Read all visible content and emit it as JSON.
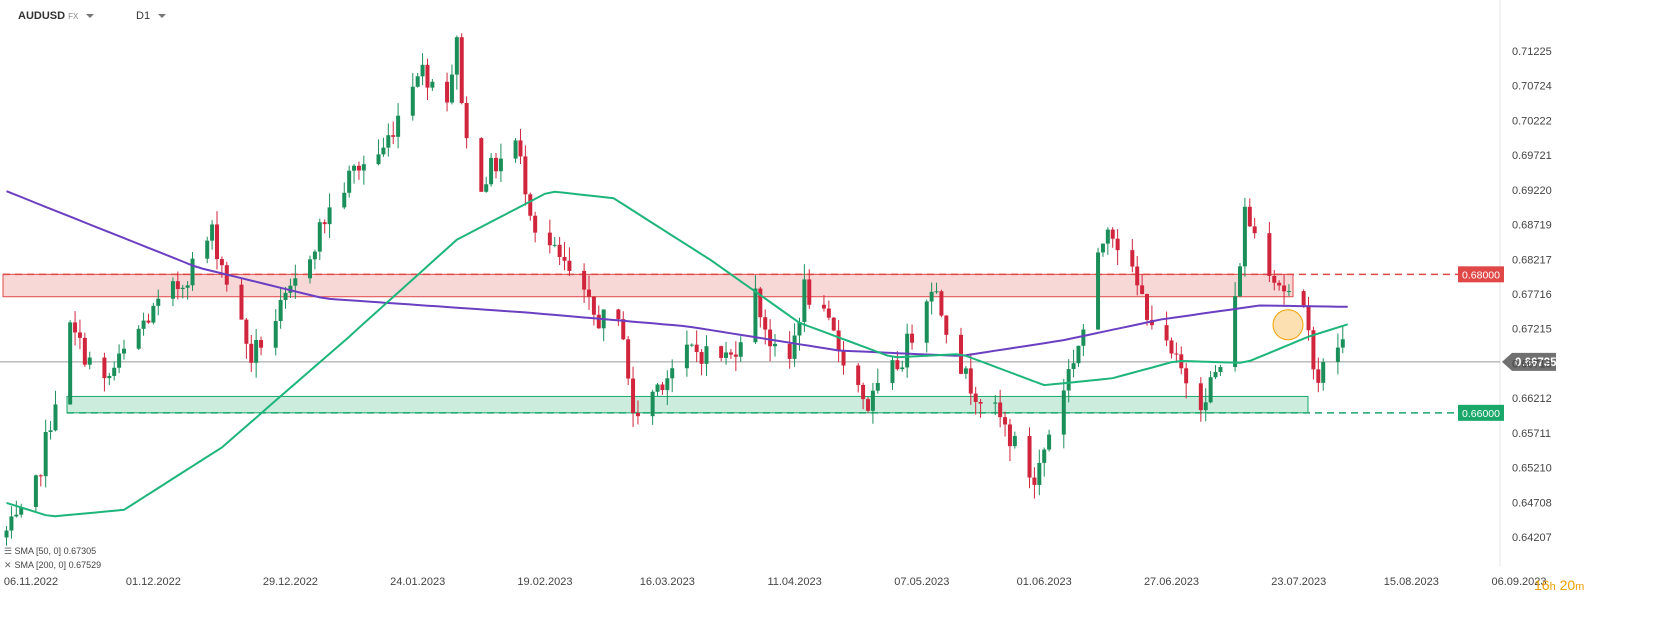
{
  "header": {
    "symbol": "AUDUSD",
    "symbol_suffix": "FX",
    "timeframe": "D1"
  },
  "timer": {
    "hours": "16",
    "h_unit": "h",
    "minutes": "20",
    "m_unit": "m"
  },
  "legend": [
    {
      "label": "SMA [50, 0]",
      "value": "0.67305",
      "color": "#1db57a"
    },
    {
      "label": "SMA [200, 0]",
      "value": "0.67529",
      "color": "#6b3fc2"
    }
  ],
  "colors": {
    "bull": "#1b8f5a",
    "bear": "#d0253c",
    "sma50": "#1db57a",
    "sma200": "#6b3fc2",
    "resistance": "#e04848",
    "support": "#19a86a",
    "price_tag": "#707070"
  },
  "chart_data": {
    "type": "candlestick",
    "instrument": "AUDUSD",
    "timeframe": "D1",
    "ylim": [
      0.634,
      0.715
    ],
    "y_ticks": [
      "0.71225",
      "0.70724",
      "0.70222",
      "0.69721",
      "0.69220",
      "0.68719",
      "0.68217",
      "0.67716",
      "0.67215",
      "0.66713",
      "0.66212",
      "0.65711",
      "0.65210",
      "0.64708",
      "0.64207"
    ],
    "x_ticks": [
      "06.11.2022",
      "01.12.2022",
      "29.12.2022",
      "24.01.2023",
      "19.02.2023",
      "16.03.2023",
      "11.04.2023",
      "07.05.2023",
      "01.06.2023",
      "27.06.2023",
      "23.07.2023",
      "15.08.2023",
      "06.09.2023"
    ],
    "current_price": "0.66735",
    "levels": [
      {
        "name": "resistance",
        "label": "0.68000",
        "value": 0.68,
        "zone": [
          0.6785,
          0.68
        ],
        "color": "#e04848"
      },
      {
        "name": "support",
        "label": "0.66000",
        "value": 0.66,
        "zone": [
          0.66,
          0.6615
        ],
        "color": "#19a86a"
      }
    ],
    "anchors": [
      {
        "date": "2022-11-01",
        "price": 0.642
      },
      {
        "date": "2022-11-07",
        "price": 0.646
      },
      {
        "date": "2022-11-15",
        "price": 0.672
      },
      {
        "date": "2022-11-22",
        "price": 0.664
      },
      {
        "date": "2022-11-30",
        "price": 0.673
      },
      {
        "date": "2022-12-08",
        "price": 0.679
      },
      {
        "date": "2022-12-14",
        "price": 0.686
      },
      {
        "date": "2022-12-22",
        "price": 0.668
      },
      {
        "date": "2022-12-30",
        "price": 0.677
      },
      {
        "date": "2023-01-06",
        "price": 0.688
      },
      {
        "date": "2023-01-12",
        "price": 0.695
      },
      {
        "date": "2023-01-18",
        "price": 0.698
      },
      {
        "date": "2023-01-25",
        "price": 0.71
      },
      {
        "date": "2023-01-31",
        "price": 0.706
      },
      {
        "date": "2023-02-02",
        "price": 0.713
      },
      {
        "date": "2023-02-05",
        "price": 0.692
      },
      {
        "date": "2023-02-14",
        "price": 0.699
      },
      {
        "date": "2023-02-18",
        "price": 0.687
      },
      {
        "date": "2023-02-24",
        "price": 0.681
      },
      {
        "date": "2023-03-02",
        "price": 0.674
      },
      {
        "date": "2023-03-08",
        "price": 0.672
      },
      {
        "date": "2023-03-10",
        "price": 0.659
      },
      {
        "date": "2023-03-16",
        "price": 0.665
      },
      {
        "date": "2023-03-22",
        "price": 0.669
      },
      {
        "date": "2023-03-30",
        "price": 0.668
      },
      {
        "date": "2023-04-04",
        "price": 0.677
      },
      {
        "date": "2023-04-10",
        "price": 0.664
      },
      {
        "date": "2023-04-14",
        "price": 0.678
      },
      {
        "date": "2023-04-20",
        "price": 0.671
      },
      {
        "date": "2023-04-27",
        "price": 0.661
      },
      {
        "date": "2023-05-04",
        "price": 0.668
      },
      {
        "date": "2023-05-10",
        "price": 0.679
      },
      {
        "date": "2023-05-17",
        "price": 0.665
      },
      {
        "date": "2023-05-24",
        "price": 0.659
      },
      {
        "date": "2023-05-31",
        "price": 0.65
      },
      {
        "date": "2023-06-05",
        "price": 0.662
      },
      {
        "date": "2023-06-10",
        "price": 0.672
      },
      {
        "date": "2023-06-15",
        "price": 0.688
      },
      {
        "date": "2023-06-21",
        "price": 0.678
      },
      {
        "date": "2023-06-27",
        "price": 0.669
      },
      {
        "date": "2023-07-04",
        "price": 0.662
      },
      {
        "date": "2023-07-10",
        "price": 0.669
      },
      {
        "date": "2023-07-13",
        "price": 0.689
      },
      {
        "date": "2023-07-19",
        "price": 0.68
      },
      {
        "date": "2023-07-25",
        "price": 0.674
      },
      {
        "date": "2023-07-28",
        "price": 0.665
      },
      {
        "date": "2023-08-01",
        "price": 0.67
      }
    ],
    "sma50_anchors": [
      {
        "date": "2022-11-01",
        "price": 0.647
      },
      {
        "date": "2022-11-10",
        "price": 0.645
      },
      {
        "date": "2022-11-25",
        "price": 0.646
      },
      {
        "date": "2022-12-15",
        "price": 0.655
      },
      {
        "date": "2023-01-10",
        "price": 0.671
      },
      {
        "date": "2023-02-01",
        "price": 0.685
      },
      {
        "date": "2023-02-20",
        "price": 0.692
      },
      {
        "date": "2023-03-05",
        "price": 0.691
      },
      {
        "date": "2023-03-25",
        "price": 0.682
      },
      {
        "date": "2023-04-12",
        "price": 0.673
      },
      {
        "date": "2023-05-01",
        "price": 0.668
      },
      {
        "date": "2023-05-15",
        "price": 0.6685
      },
      {
        "date": "2023-06-01",
        "price": 0.664
      },
      {
        "date": "2023-06-15",
        "price": 0.665
      },
      {
        "date": "2023-06-28",
        "price": 0.6675
      },
      {
        "date": "2023-07-12",
        "price": 0.6672
      },
      {
        "date": "2023-07-25",
        "price": 0.671
      },
      {
        "date": "2023-08-03",
        "price": 0.673
      }
    ],
    "sma200_anchors": [
      {
        "date": "2022-11-01",
        "price": 0.692
      },
      {
        "date": "2022-12-10",
        "price": 0.681
      },
      {
        "date": "2023-01-05",
        "price": 0.6765
      },
      {
        "date": "2023-02-15",
        "price": 0.6745
      },
      {
        "date": "2023-03-20",
        "price": 0.6725
      },
      {
        "date": "2023-04-20",
        "price": 0.669
      },
      {
        "date": "2023-05-15",
        "price": 0.6682
      },
      {
        "date": "2023-06-05",
        "price": 0.6705
      },
      {
        "date": "2023-06-25",
        "price": 0.6735
      },
      {
        "date": "2023-07-15",
        "price": 0.6755
      },
      {
        "date": "2023-08-03",
        "price": 0.6753
      }
    ]
  }
}
